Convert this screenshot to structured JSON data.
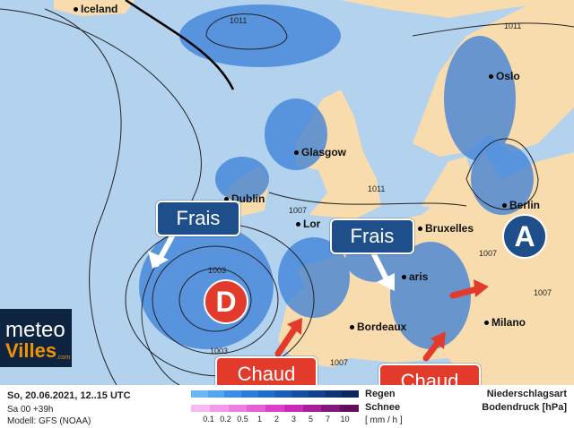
{
  "map": {
    "colors": {
      "sea": "#b3d2ee",
      "land": "#f8dcae",
      "precip": "#3a7ed8",
      "isobar": "#222222"
    }
  },
  "cities": {
    "iceland": "Iceland",
    "glasgow": "Glasgow",
    "dublin": "Dublin",
    "london": "Lor",
    "bruxelles": "Bruxelles",
    "paris": "aris",
    "bordeaux": "Bordeaux",
    "milano": "Milano",
    "oslo": "Oslo",
    "berlin": "Berlin"
  },
  "isobars": [
    "1011",
    "1011",
    "1011",
    "1007",
    "1007",
    "1007",
    "1007",
    "1003",
    "1003"
  ],
  "callouts": {
    "frais_west": "Frais",
    "frais_east": "Frais",
    "chaud_west": "Chaud",
    "chaud_east": "Chaud",
    "low": "D",
    "high": "A"
  },
  "logo": {
    "line1": "meteo",
    "line2": "Villes",
    "suffix": ".com"
  },
  "footer": {
    "datetime": "So, 20.06.2021, 12..15 UTC",
    "run": "Sa 00 +39h",
    "model": "Modell: GFS (NOAA)",
    "rain": "Regen",
    "snow": "Schnee",
    "unit": "[ mm / h ]",
    "type_label": "Niederschlagsart",
    "pressure_label": "Bodendruck [hPa]",
    "scale": [
      "0.1",
      "0.2",
      "0.5",
      "1",
      "2",
      "3",
      "5",
      "7",
      "10"
    ],
    "rain_colors": [
      "#6bb5f5",
      "#55a4ef",
      "#3c8fe6",
      "#2a7ddb",
      "#1f6ccc",
      "#1a5db8",
      "#154ea3",
      "#10408d",
      "#0d3375",
      "#0a285c"
    ],
    "snow_colors": [
      "#f7b8f3",
      "#f29be9",
      "#ec7fe0",
      "#e560d6",
      "#dd3fcb",
      "#c92bb8",
      "#a81f9a",
      "#85167b",
      "#63105c"
    ]
  }
}
